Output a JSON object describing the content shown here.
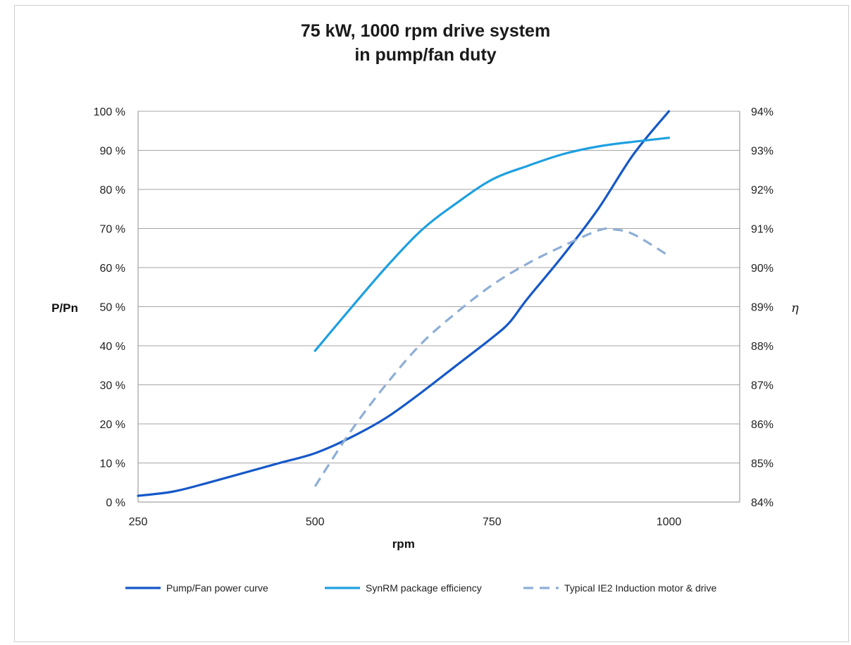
{
  "chart_data": {
    "type": "line",
    "title": [
      "75 kW, 1000 rpm drive system",
      "in pump/fan duty"
    ],
    "xlabel": "rpm",
    "ylabel": "P/Pn",
    "y2label": "η",
    "xlim": [
      250,
      1100
    ],
    "ylim": [
      0,
      100
    ],
    "y2lim": [
      84,
      94
    ],
    "x_ticks": [
      250,
      500,
      750,
      1000
    ],
    "y_ticks": [
      "0 %",
      "10 %",
      "20 %",
      "30 %",
      "40 %",
      "50 %",
      "60 %",
      "70 %",
      "80 %",
      "90 %",
      "100 %"
    ],
    "y2_ticks": [
      "84%",
      "85%",
      "86%",
      "87%",
      "88%",
      "89%",
      "90%",
      "91%",
      "92%",
      "93%",
      "94%"
    ],
    "grid": "horizontal",
    "legend_position": "bottom",
    "series": [
      {
        "name": "Pump/Fan power curve",
        "axis": "left",
        "color": "#1558c8",
        "dash": false,
        "points": [
          [
            250,
            1.6
          ],
          [
            300,
            2.7
          ],
          [
            350,
            5
          ],
          [
            400,
            7.5
          ],
          [
            450,
            10
          ],
          [
            500,
            12.5
          ],
          [
            550,
            16.5
          ],
          [
            600,
            21.5
          ],
          [
            650,
            28
          ],
          [
            700,
            35
          ],
          [
            750,
            42
          ],
          [
            775,
            46
          ],
          [
            800,
            52
          ],
          [
            850,
            63
          ],
          [
            900,
            75
          ],
          [
            950,
            89
          ],
          [
            1000,
            100
          ]
        ]
      },
      {
        "name": "SynRM package efficiency",
        "axis": "right",
        "color": "#1ea0e0",
        "dash": false,
        "points": [
          [
            500,
            87.87
          ],
          [
            550,
            88.95
          ],
          [
            600,
            90
          ],
          [
            650,
            90.95
          ],
          [
            700,
            91.65
          ],
          [
            750,
            92.25
          ],
          [
            800,
            92.6
          ],
          [
            850,
            92.9
          ],
          [
            900,
            93.1
          ],
          [
            950,
            93.22
          ],
          [
            1000,
            93.32
          ]
        ]
      },
      {
        "name": "Typical IE2 Induction motor & drive",
        "axis": "right",
        "color": "#8eaed6",
        "dash": true,
        "points": [
          [
            500,
            84.4
          ],
          [
            550,
            85.8
          ],
          [
            600,
            87.0
          ],
          [
            650,
            88.05
          ],
          [
            700,
            88.85
          ],
          [
            750,
            89.55
          ],
          [
            800,
            90.1
          ],
          [
            850,
            90.55
          ],
          [
            900,
            90.95
          ],
          [
            920,
            90.98
          ],
          [
            950,
            90.85
          ],
          [
            1000,
            90.3
          ]
        ]
      }
    ]
  }
}
